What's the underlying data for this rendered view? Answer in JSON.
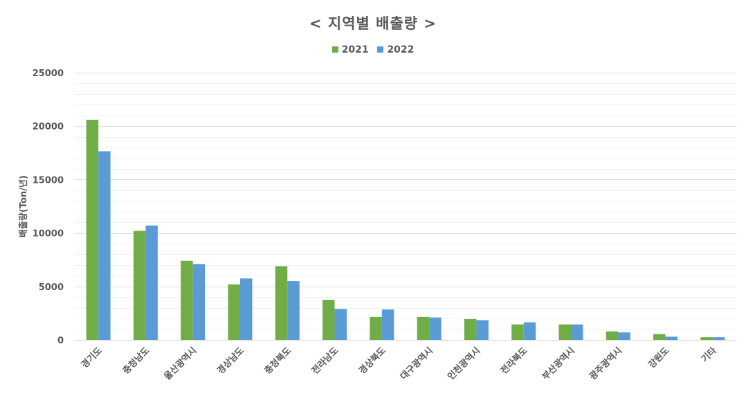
{
  "chart_data": {
    "type": "bar",
    "title": "< 지역별 배출량 >",
    "xlabel": "",
    "ylabel": "배출량(Ton/년)",
    "ylim": [
      0,
      25000
    ],
    "yticks": [
      0,
      5000,
      10000,
      15000,
      20000,
      25000
    ],
    "grid": true,
    "legend_position": "top",
    "categories": [
      "경기도",
      "충청남도",
      "울산광역시",
      "경상남도",
      "충청북도",
      "전라남도",
      "경상북도",
      "대구광역시",
      "인천광역시",
      "전라북도",
      "부산광역시",
      "광주광역시",
      "강원도",
      "기타"
    ],
    "series": [
      {
        "name": "2021",
        "color": "#70ad47",
        "values": [
          20600,
          10200,
          7400,
          5200,
          6900,
          3750,
          2150,
          2150,
          1950,
          1450,
          1450,
          800,
          550,
          250
        ]
      },
      {
        "name": "2022",
        "color": "#5b9bd5",
        "values": [
          17650,
          10700,
          7100,
          5750,
          5500,
          2900,
          2850,
          2100,
          1850,
          1650,
          1450,
          700,
          300,
          250
        ]
      }
    ]
  }
}
